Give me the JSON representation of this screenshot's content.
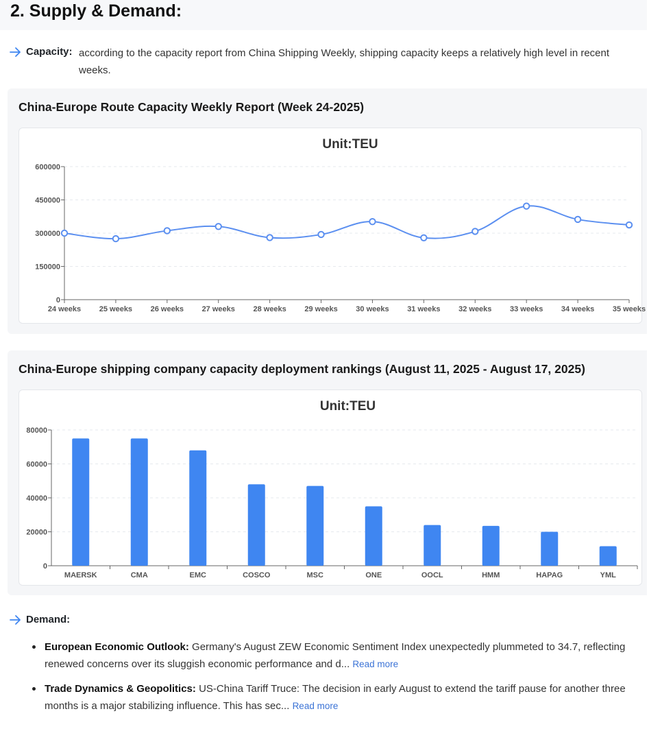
{
  "section": {
    "title": "2. Supply & Demand:"
  },
  "capacity": {
    "label": "Capacity:",
    "text": "according to the capacity report from China Shipping Weekly, shipping capacity keeps a relatively high level in recent weeks."
  },
  "colors": {
    "accent": "#3f86f1",
    "line": "#5b8ff0",
    "bar": "#3f86f1",
    "link": "#3b73d6"
  },
  "chart_data": [
    {
      "type": "line",
      "panel_title": "China-Europe Route Capacity Weekly Report (Week 24-2025)",
      "title": "Unit:TEU",
      "categories": [
        "24 weeks",
        "25 weeks",
        "26 weeks",
        "27 weeks",
        "28 weeks",
        "29 weeks",
        "30 weeks",
        "31 weeks",
        "32 weeks",
        "33 weeks",
        "34 weeks",
        "35 weeks"
      ],
      "values": [
        300000,
        275000,
        311000,
        330000,
        280000,
        294000,
        352000,
        279000,
        308000,
        422000,
        362000,
        337000
      ],
      "yticks": [
        "0",
        "150000",
        "300000",
        "450000",
        "600000"
      ],
      "ylim": [
        0,
        600000
      ],
      "grid": true,
      "smooth": true
    },
    {
      "type": "bar",
      "panel_title": "China-Europe shipping company capacity deployment rankings (August 11, 2025 - August 17, 2025)",
      "title": "Unit:TEU",
      "categories": [
        "MAERSK",
        "CMA",
        "EMC",
        "COSCO",
        "MSC",
        "ONE",
        "OOCL",
        "HMM",
        "HAPAG",
        "YML"
      ],
      "values": [
        75000,
        75000,
        68000,
        48000,
        47000,
        35000,
        24000,
        23500,
        20000,
        11500
      ],
      "yticks": [
        "0",
        "20000",
        "40000",
        "60000",
        "80000"
      ],
      "ylim": [
        0,
        80000
      ],
      "grid": true
    }
  ],
  "demand": {
    "label": "Demand:",
    "items": [
      {
        "label": "European Economic Outlook:",
        "text": " Germany's August ZEW Economic Sentiment Index unexpectedly plummeted to 34.7, reflecting renewed concerns over its sluggish economic performance and d... ",
        "link": "Read more"
      },
      {
        "label": "Trade Dynamics & Geopolitics:",
        "text": " US-China Tariff Truce: The decision in early August to extend the tariff pause for another three months is a major stabilizing influence. This has sec... ",
        "link": "Read more"
      }
    ]
  }
}
